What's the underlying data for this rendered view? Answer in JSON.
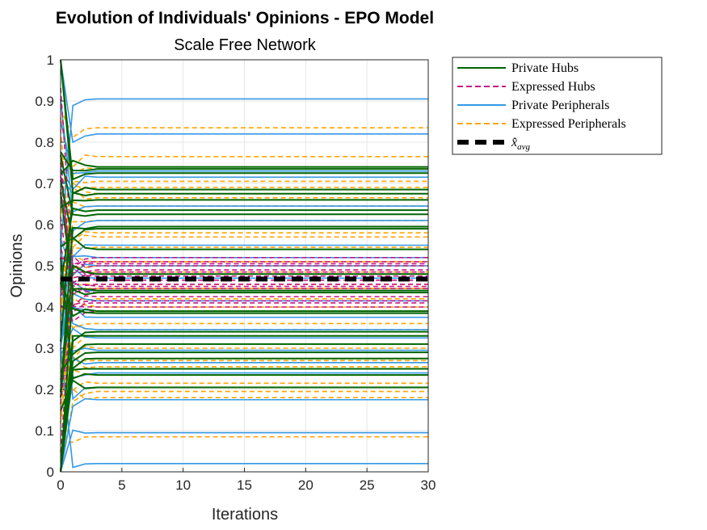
{
  "chart_data": {
    "type": "line",
    "title": "Evolution of Individuals' Opinions - EPO Model",
    "subtitle": "Scale Free Network",
    "xlabel": "Iterations",
    "ylabel": "Opinions",
    "xlim": [
      0,
      30
    ],
    "ylim": [
      0,
      1
    ],
    "xticks": [
      "0",
      "5",
      "10",
      "15",
      "20",
      "25",
      "30"
    ],
    "yticks": [
      "0",
      "0.1",
      "0.2",
      "0.3",
      "0.4",
      "0.5",
      "0.6",
      "0.7",
      "0.8",
      "0.9",
      "1"
    ],
    "grid": true,
    "legend_position": "outside-top-right",
    "legend": [
      {
        "label": "Private Hubs",
        "color": "#006400",
        "style": "solid"
      },
      {
        "label": "Expressed Hubs",
        "color": "#C71585",
        "style": "dashed"
      },
      {
        "label": "Private Peripherals",
        "color": "#3399E6",
        "style": "solid"
      },
      {
        "label": "Expressed Peripherals",
        "color": "#FFA500",
        "style": "dashed"
      },
      {
        "label_tex": "x̂",
        "label_sub": "avg",
        "color": "#000000",
        "style": "thick-dashed"
      }
    ],
    "series": [
      {
        "group": "Expressed Peripherals",
        "color": "#FFA500",
        "dash": "dashed",
        "initial": [
          0.99,
          0.97,
          0.95,
          0.93,
          0.9,
          0.85,
          0.8,
          0.75,
          0.68,
          0.62,
          0.55,
          0.42,
          0.35,
          0.3,
          0.22,
          0.15,
          0.08,
          0.04
        ],
        "steady": [
          0.835,
          0.765,
          0.735,
          0.705,
          0.69,
          0.675,
          0.665,
          0.645,
          0.61,
          0.58,
          0.57,
          0.545,
          0.51,
          0.5,
          0.485,
          0.455,
          0.445,
          0.42,
          0.4,
          0.385,
          0.36,
          0.345,
          0.33,
          0.3,
          0.27,
          0.255,
          0.235,
          0.215,
          0.195,
          0.18,
          0.085
        ]
      },
      {
        "group": "Private Peripherals",
        "color": "#3399E6",
        "dash": "solid",
        "steady": [
          0.905,
          0.82,
          0.73,
          0.715,
          0.685,
          0.645,
          0.61,
          0.55,
          0.52,
          0.5,
          0.47,
          0.44,
          0.415,
          0.39,
          0.375,
          0.345,
          0.325,
          0.295,
          0.265,
          0.24,
          0.205,
          0.175,
          0.095,
          0.02
        ]
      },
      {
        "group": "Expressed Hubs",
        "color": "#C71585",
        "dash": "dashed",
        "steady": [
          0.52,
          0.51,
          0.505,
          0.5,
          0.49,
          0.485,
          0.48,
          0.475,
          0.465,
          0.455,
          0.45,
          0.445,
          0.435,
          0.425,
          0.415,
          0.41,
          0.4,
          0.39
        ]
      },
      {
        "group": "Private Hubs",
        "color": "#006400",
        "dash": "solid",
        "steady": [
          0.74,
          0.735,
          0.725,
          0.685,
          0.675,
          0.66,
          0.635,
          0.625,
          0.595,
          0.59,
          0.54,
          0.48,
          0.44,
          0.435,
          0.39,
          0.385,
          0.34,
          0.33,
          0.31,
          0.29,
          0.275,
          0.25,
          0.235,
          0.205
        ]
      },
      {
        "group": "x_avg",
        "color": "#000000",
        "dash": "thick-dashed",
        "steady": [
          0.468
        ]
      }
    ]
  }
}
